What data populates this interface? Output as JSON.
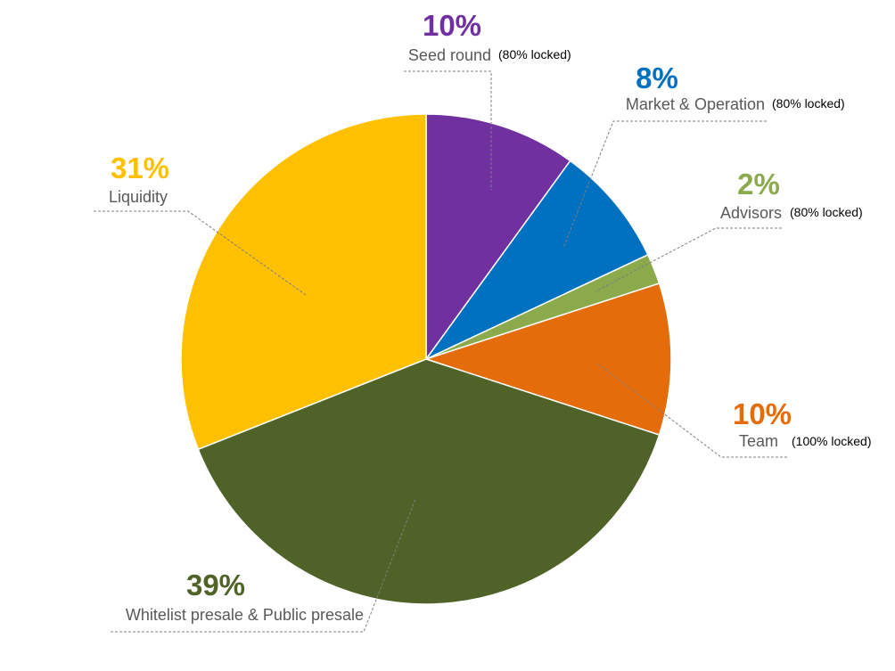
{
  "chart_data": {
    "type": "pie",
    "start_angle_deg": 0,
    "direction": "clockwise",
    "slices": [
      {
        "label": "Seed round",
        "value": 10,
        "display": "10%",
        "note": "(80% locked)",
        "color": "#7030A0"
      },
      {
        "label": "Market & Operation",
        "value": 8,
        "display": "8%",
        "note": "(80% locked)",
        "color": "#0070C0"
      },
      {
        "label": "Advisors",
        "value": 2,
        "display": "2%",
        "note": "(80% locked)",
        "color": "#8AAA4C"
      },
      {
        "label": "Team",
        "value": 10,
        "display": "10%",
        "note": "(100% locked)",
        "color": "#E46C0A"
      },
      {
        "label": "Whitelist presale & Public presale",
        "value": 39,
        "display": "39%",
        "note": "",
        "color": "#4F6228"
      },
      {
        "label": "Liquidity",
        "value": 31,
        "display": "31%",
        "note": "",
        "color": "#FFC000"
      }
    ]
  }
}
